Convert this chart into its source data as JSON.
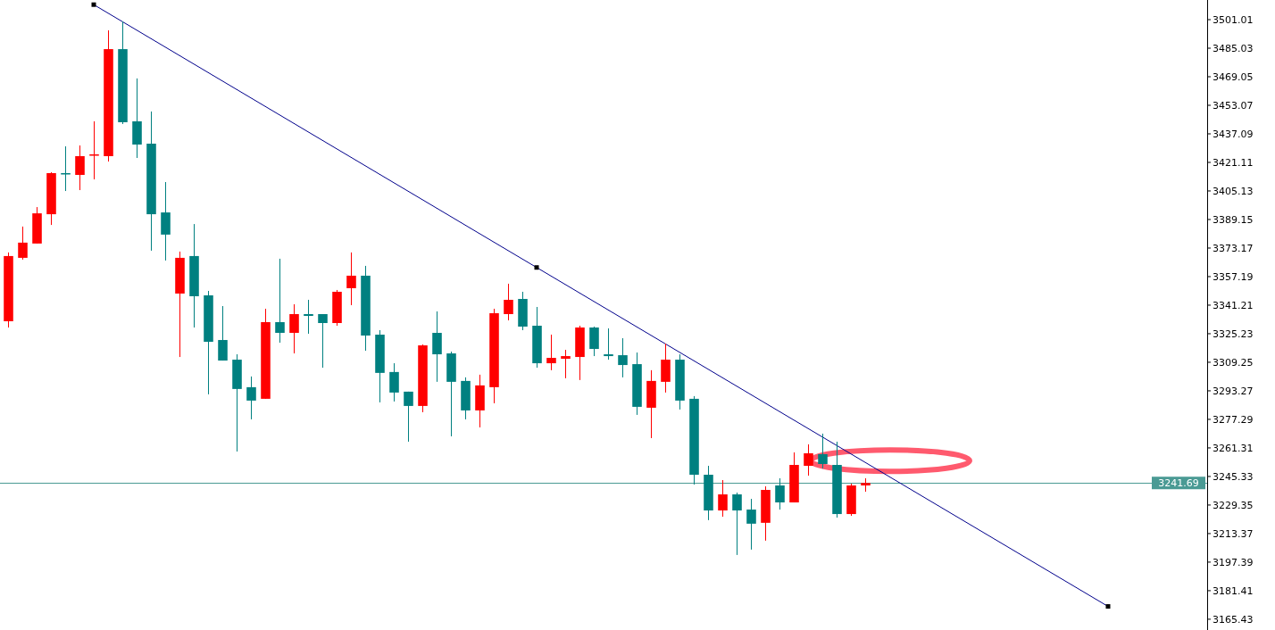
{
  "chart_data": {
    "type": "candlestick",
    "categories": [
      null,
      null,
      null,
      null,
      null,
      null,
      null,
      null,
      null,
      null,
      null,
      null,
      null,
      null,
      null,
      null,
      null,
      null,
      null,
      null,
      null,
      null,
      null,
      null,
      null,
      null,
      null,
      null,
      null,
      null,
      null,
      null,
      null,
      null,
      null,
      null,
      null,
      null,
      null,
      null,
      null,
      null,
      null,
      null,
      null,
      null,
      null,
      null,
      null,
      null,
      null,
      null,
      null,
      null,
      null,
      null,
      null,
      null,
      null,
      null,
      null,
      null,
      null,
      null,
      null,
      null,
      null,
      null,
      null,
      null,
      null,
      null,
      null,
      null,
      null,
      null,
      null,
      null,
      null,
      null,
      null,
      null,
      null,
      null
    ],
    "ohlc": [
      [
        3332.2,
        3370.7,
        3328.7,
        3368.7
      ],
      [
        3367.7,
        3385.2,
        3366.7,
        3376.2
      ],
      [
        3375.7,
        3396.1,
        3375.7,
        3392.6
      ],
      [
        3392.1,
        3415.6,
        3386.1,
        3415.1
      ],
      [
        3415.1,
        3430.1,
        3405.1,
        3414.6
      ],
      [
        3414.1,
        3430.6,
        3405.6,
        3424.6
      ],
      [
        3425.1,
        3444.1,
        3411.6,
        3425.6
      ],
      [
        3424.6,
        3495.0,
        3421.6,
        3484.5
      ],
      [
        3484.5,
        3500.0,
        3442.6,
        3443.6
      ],
      [
        3444.1,
        3468.1,
        3423.6,
        3431.1
      ],
      [
        3431.6,
        3449.6,
        3371.7,
        3392.1
      ],
      [
        3393.1,
        3410.1,
        3366.2,
        3380.7
      ],
      [
        3347.7,
        3371.2,
        3312.2,
        3367.7
      ],
      [
        3368.7,
        3386.6,
        3328.7,
        3346.2
      ],
      [
        3346.7,
        3349.2,
        3291.3,
        3320.7
      ],
      [
        3321.7,
        3340.7,
        3310.2,
        3310.2
      ],
      [
        3310.7,
        3313.7,
        3259.3,
        3294.3
      ],
      [
        3295.3,
        3301.3,
        3277.3,
        3287.8
      ],
      [
        3288.8,
        3339.2,
        3288.8,
        3331.7
      ],
      [
        3331.7,
        3367.2,
        3320.2,
        3325.7
      ],
      [
        3325.7,
        3341.7,
        3314.2,
        3336.2
      ],
      [
        3336.2,
        3344.2,
        3325.2,
        3335.2
      ],
      [
        3336.2,
        3336.2,
        3306.2,
        3331.2
      ],
      [
        3331.2,
        3349.7,
        3329.7,
        3348.7
      ],
      [
        3350.7,
        3370.7,
        3341.2,
        3357.7
      ],
      [
        3357.7,
        3363.2,
        3315.7,
        3324.2
      ],
      [
        3324.7,
        3327.2,
        3286.8,
        3303.3
      ],
      [
        3303.8,
        3308.7,
        3287.3,
        3292.3
      ],
      [
        3292.8,
        3292.8,
        3264.8,
        3284.8
      ],
      [
        3284.8,
        3319.2,
        3281.3,
        3318.7
      ],
      [
        3325.7,
        3337.7,
        3298.3,
        3313.7
      ],
      [
        3314.2,
        3315.2,
        3267.8,
        3298.3
      ],
      [
        3298.8,
        3300.8,
        3277.3,
        3282.3
      ],
      [
        3282.3,
        3302.3,
        3272.8,
        3296.3
      ],
      [
        3295.3,
        3339.2,
        3286.3,
        3336.7
      ],
      [
        3336.2,
        3353.2,
        3332.7,
        3344.2
      ],
      [
        3344.7,
        3348.7,
        3327.2,
        3329.2
      ],
      [
        3329.7,
        3340.2,
        3306.2,
        3308.7
      ],
      [
        3308.7,
        3324.7,
        3304.8,
        3311.7
      ],
      [
        3311.2,
        3316.2,
        3300.3,
        3312.7
      ],
      [
        3312.2,
        3329.7,
        3299.3,
        3328.7
      ],
      [
        3328.7,
        3329.2,
        3312.7,
        3316.7
      ],
      [
        3313.7,
        3328.2,
        3310.7,
        3312.7
      ],
      [
        3313.2,
        3322.7,
        3300.8,
        3307.7
      ],
      [
        3308.2,
        3314.7,
        3279.8,
        3284.3
      ],
      [
        3283.8,
        3304.8,
        3266.8,
        3298.8
      ],
      [
        3298.3,
        3319.7,
        3292.3,
        3310.7
      ],
      [
        3310.7,
        3313.7,
        3282.8,
        3287.8
      ],
      [
        3288.8,
        3290.3,
        3240.8,
        3246.3
      ],
      [
        3246.3,
        3251.3,
        3220.9,
        3226.3
      ],
      [
        3226.3,
        3243.3,
        3222.8,
        3235.3
      ],
      [
        3235.3,
        3236.3,
        3201.4,
        3226.3
      ],
      [
        3226.8,
        3232.8,
        3204.4,
        3218.9
      ],
      [
        3219.4,
        3239.8,
        3209.4,
        3237.8
      ],
      [
        3240.3,
        3244.3,
        3226.8,
        3230.8
      ],
      [
        3230.8,
        3258.8,
        3230.8,
        3251.8
      ],
      [
        3251.3,
        3263.3,
        3245.8,
        3258.3
      ],
      [
        3257.8,
        3269.3,
        3249.8,
        3252.3
      ],
      [
        3251.8,
        3264.8,
        3222.3,
        3224.3
      ],
      [
        3224.3,
        3241.3,
        3223.3,
        3240.3
      ],
      [
        3240.3,
        3244.3,
        3236.8,
        3241.69
      ],
      null,
      null,
      null,
      null,
      null,
      null,
      null,
      null,
      null,
      null,
      null,
      null,
      null,
      null,
      null,
      null,
      null,
      null,
      null,
      null,
      null,
      null,
      null
    ],
    "colors": [
      "#ff0000",
      "#ff0000",
      "#ff0000",
      "#ff0000",
      "#008080",
      "#ff0000",
      "#ff0000",
      "#ff0000",
      "#008080",
      "#008080",
      "#008080",
      "#008080",
      "#ff0000",
      "#008080",
      "#008080",
      "#008080",
      "#008080",
      "#008080",
      "#ff0000",
      "#008080",
      "#ff0000",
      "#008080",
      "#008080",
      "#ff0000",
      "#ff0000",
      "#008080",
      "#008080",
      "#008080",
      "#008080",
      "#ff0000",
      "#008080",
      "#008080",
      "#008080",
      "#ff0000",
      "#ff0000",
      "#ff0000",
      "#008080",
      "#008080",
      "#ff0000",
      "#ff0000",
      "#ff0000",
      "#008080",
      "#008080",
      "#008080",
      "#008080",
      "#ff0000",
      "#ff0000",
      "#008080",
      "#008080",
      "#008080",
      "#ff0000",
      "#008080",
      "#008080",
      "#ff0000",
      "#008080",
      "#ff0000",
      "#ff0000",
      "#008080",
      "#008080",
      "#ff0000",
      "#ff0000",
      null,
      null,
      null,
      null,
      null,
      null,
      null,
      null,
      null,
      null,
      null,
      null,
      null,
      null,
      null,
      null,
      null,
      null,
      null,
      null,
      null,
      null,
      null
    ],
    "series": [
      {
        "type": "line",
        "values": [
          null,
          null,
          null,
          null,
          null,
          null,
          3509.4,
          null,
          null,
          null,
          null,
          null,
          null,
          null,
          null,
          null,
          null,
          null,
          null,
          null,
          null,
          null,
          null,
          null,
          null,
          null,
          null,
          null,
          null,
          null,
          null,
          null,
          null,
          null,
          null,
          null,
          null,
          3362.3,
          null,
          null,
          null,
          null,
          null,
          null,
          null,
          null,
          null,
          null,
          null,
          null,
          null,
          null,
          null,
          null,
          null,
          null,
          null,
          null,
          null,
          null,
          null,
          null,
          null,
          null,
          null,
          null,
          null,
          null,
          null,
          null,
          null,
          null,
          null,
          null,
          null,
          null,
          null,
          3172.6,
          null,
          null,
          null,
          null,
          null,
          null
        ],
        "color": "#00008b",
        "marker": "square"
      }
    ],
    "ref_lines": [
      {
        "axis": "y",
        "value": 3241.69,
        "label": "3241.69",
        "color": "#4a9a94"
      }
    ],
    "ylim": [
      3159.4,
      3512.0
    ],
    "yticks": [
      3165.43,
      3181.41,
      3197.39,
      3213.37,
      3229.35,
      3245.33,
      3261.31,
      3277.29,
      3293.27,
      3309.25,
      3325.23,
      3341.21,
      3357.19,
      3373.17,
      3389.15,
      3405.13,
      3421.11,
      3437.09,
      3453.07,
      3469.05,
      3485.03,
      3501.01
    ]
  }
}
